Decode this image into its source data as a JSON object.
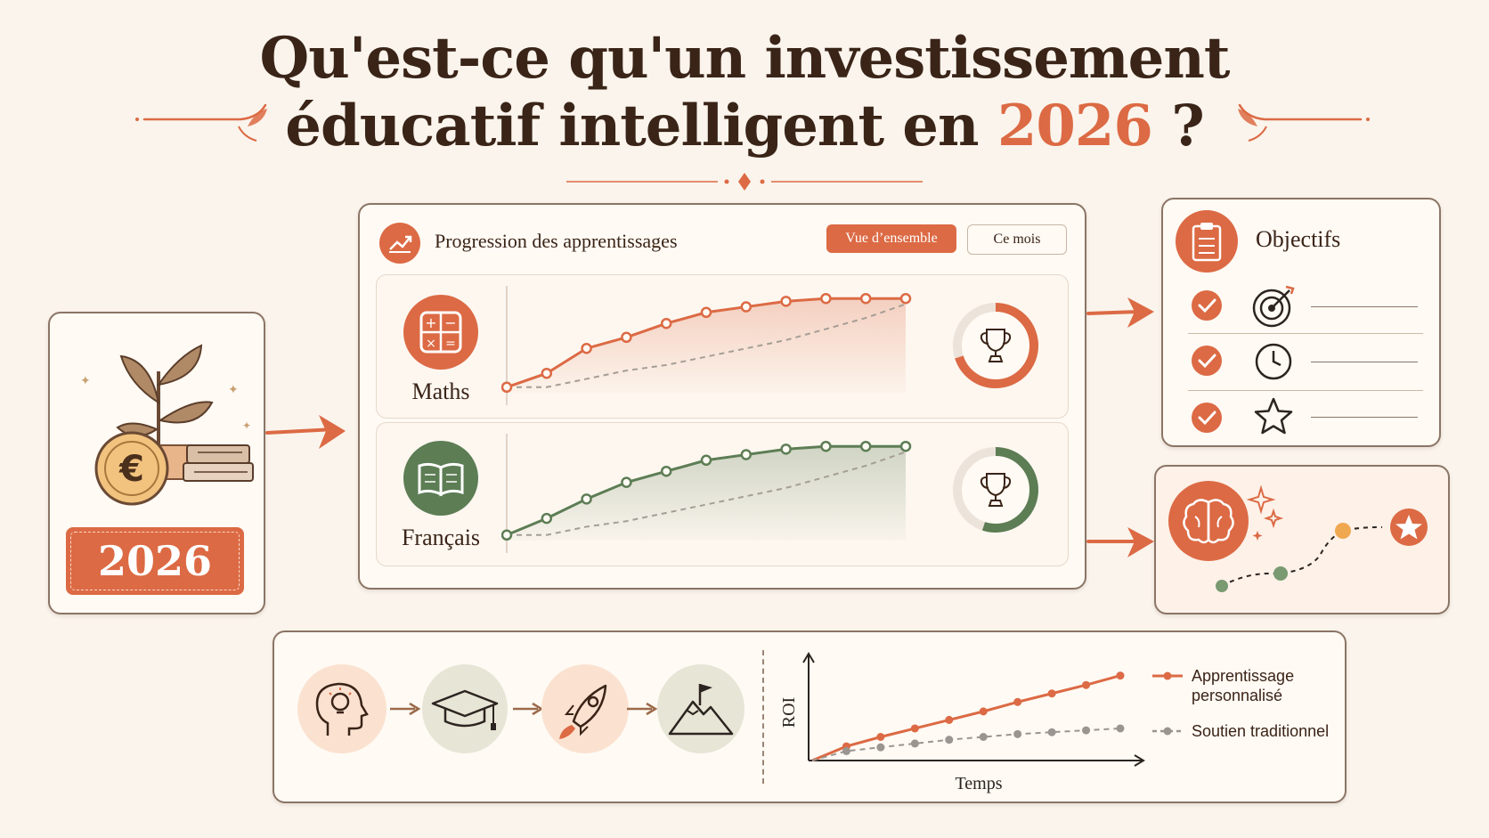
{
  "title": {
    "line1": "Qu'est-ce qu'un investissement",
    "line2_prefix": "éducatif intelligent en ",
    "line2_year": "2026",
    "line2_suffix": " ?"
  },
  "left_card": {
    "year": "2026",
    "icons": [
      "plant-icon",
      "euro-coin-icon",
      "books-icon"
    ]
  },
  "progress_card": {
    "title": "Progression des apprentissages",
    "tabs": [
      {
        "label": "Vue d’ensemble",
        "active": true
      },
      {
        "label": "Ce mois",
        "active": false
      }
    ],
    "subjects": [
      {
        "name": "Maths",
        "icon": "calculator-icon",
        "color": "#dc6a44",
        "ring_fraction": 0.7,
        "main": [
          2,
          7,
          16,
          20,
          25,
          29,
          31,
          33,
          34,
          34,
          34
        ],
        "dashed": [
          2,
          2,
          5,
          8,
          10,
          13,
          16,
          19,
          23,
          27,
          32
        ]
      },
      {
        "name": "Français",
        "icon": "book-icon",
        "color": "#5d7d55",
        "ring_fraction": 0.55,
        "main": [
          2,
          8,
          15,
          21,
          25,
          29,
          31,
          33,
          34,
          34,
          34
        ],
        "dashed": [
          2,
          2,
          5,
          7,
          10,
          13,
          16,
          19,
          23,
          27,
          32
        ]
      }
    ]
  },
  "objectives_card": {
    "title": "Objectifs",
    "items": [
      {
        "icon": "target-icon",
        "checked": true
      },
      {
        "icon": "clock-icon",
        "checked": true
      },
      {
        "icon": "star-icon",
        "checked": true
      }
    ]
  },
  "bottom_panel": {
    "steps": [
      "head-lightbulb-icon",
      "graduation-cap-icon",
      "rocket-icon",
      "mountain-flag-icon"
    ],
    "chart_data": {
      "type": "line",
      "xlabel": "Temps",
      "ylabel": "ROI",
      "series": [
        {
          "name": "Apprentissage personnalisé",
          "color": "#dc6a44",
          "style": "solid",
          "values": [
            0,
            15,
            25,
            34,
            43,
            52,
            62,
            71,
            80,
            90
          ]
        },
        {
          "name": "Soutien traditionnel",
          "color": "#9a9590",
          "style": "dashed",
          "values": [
            0,
            10,
            14,
            18,
            22,
            25,
            28,
            30,
            32,
            34
          ]
        }
      ]
    }
  }
}
